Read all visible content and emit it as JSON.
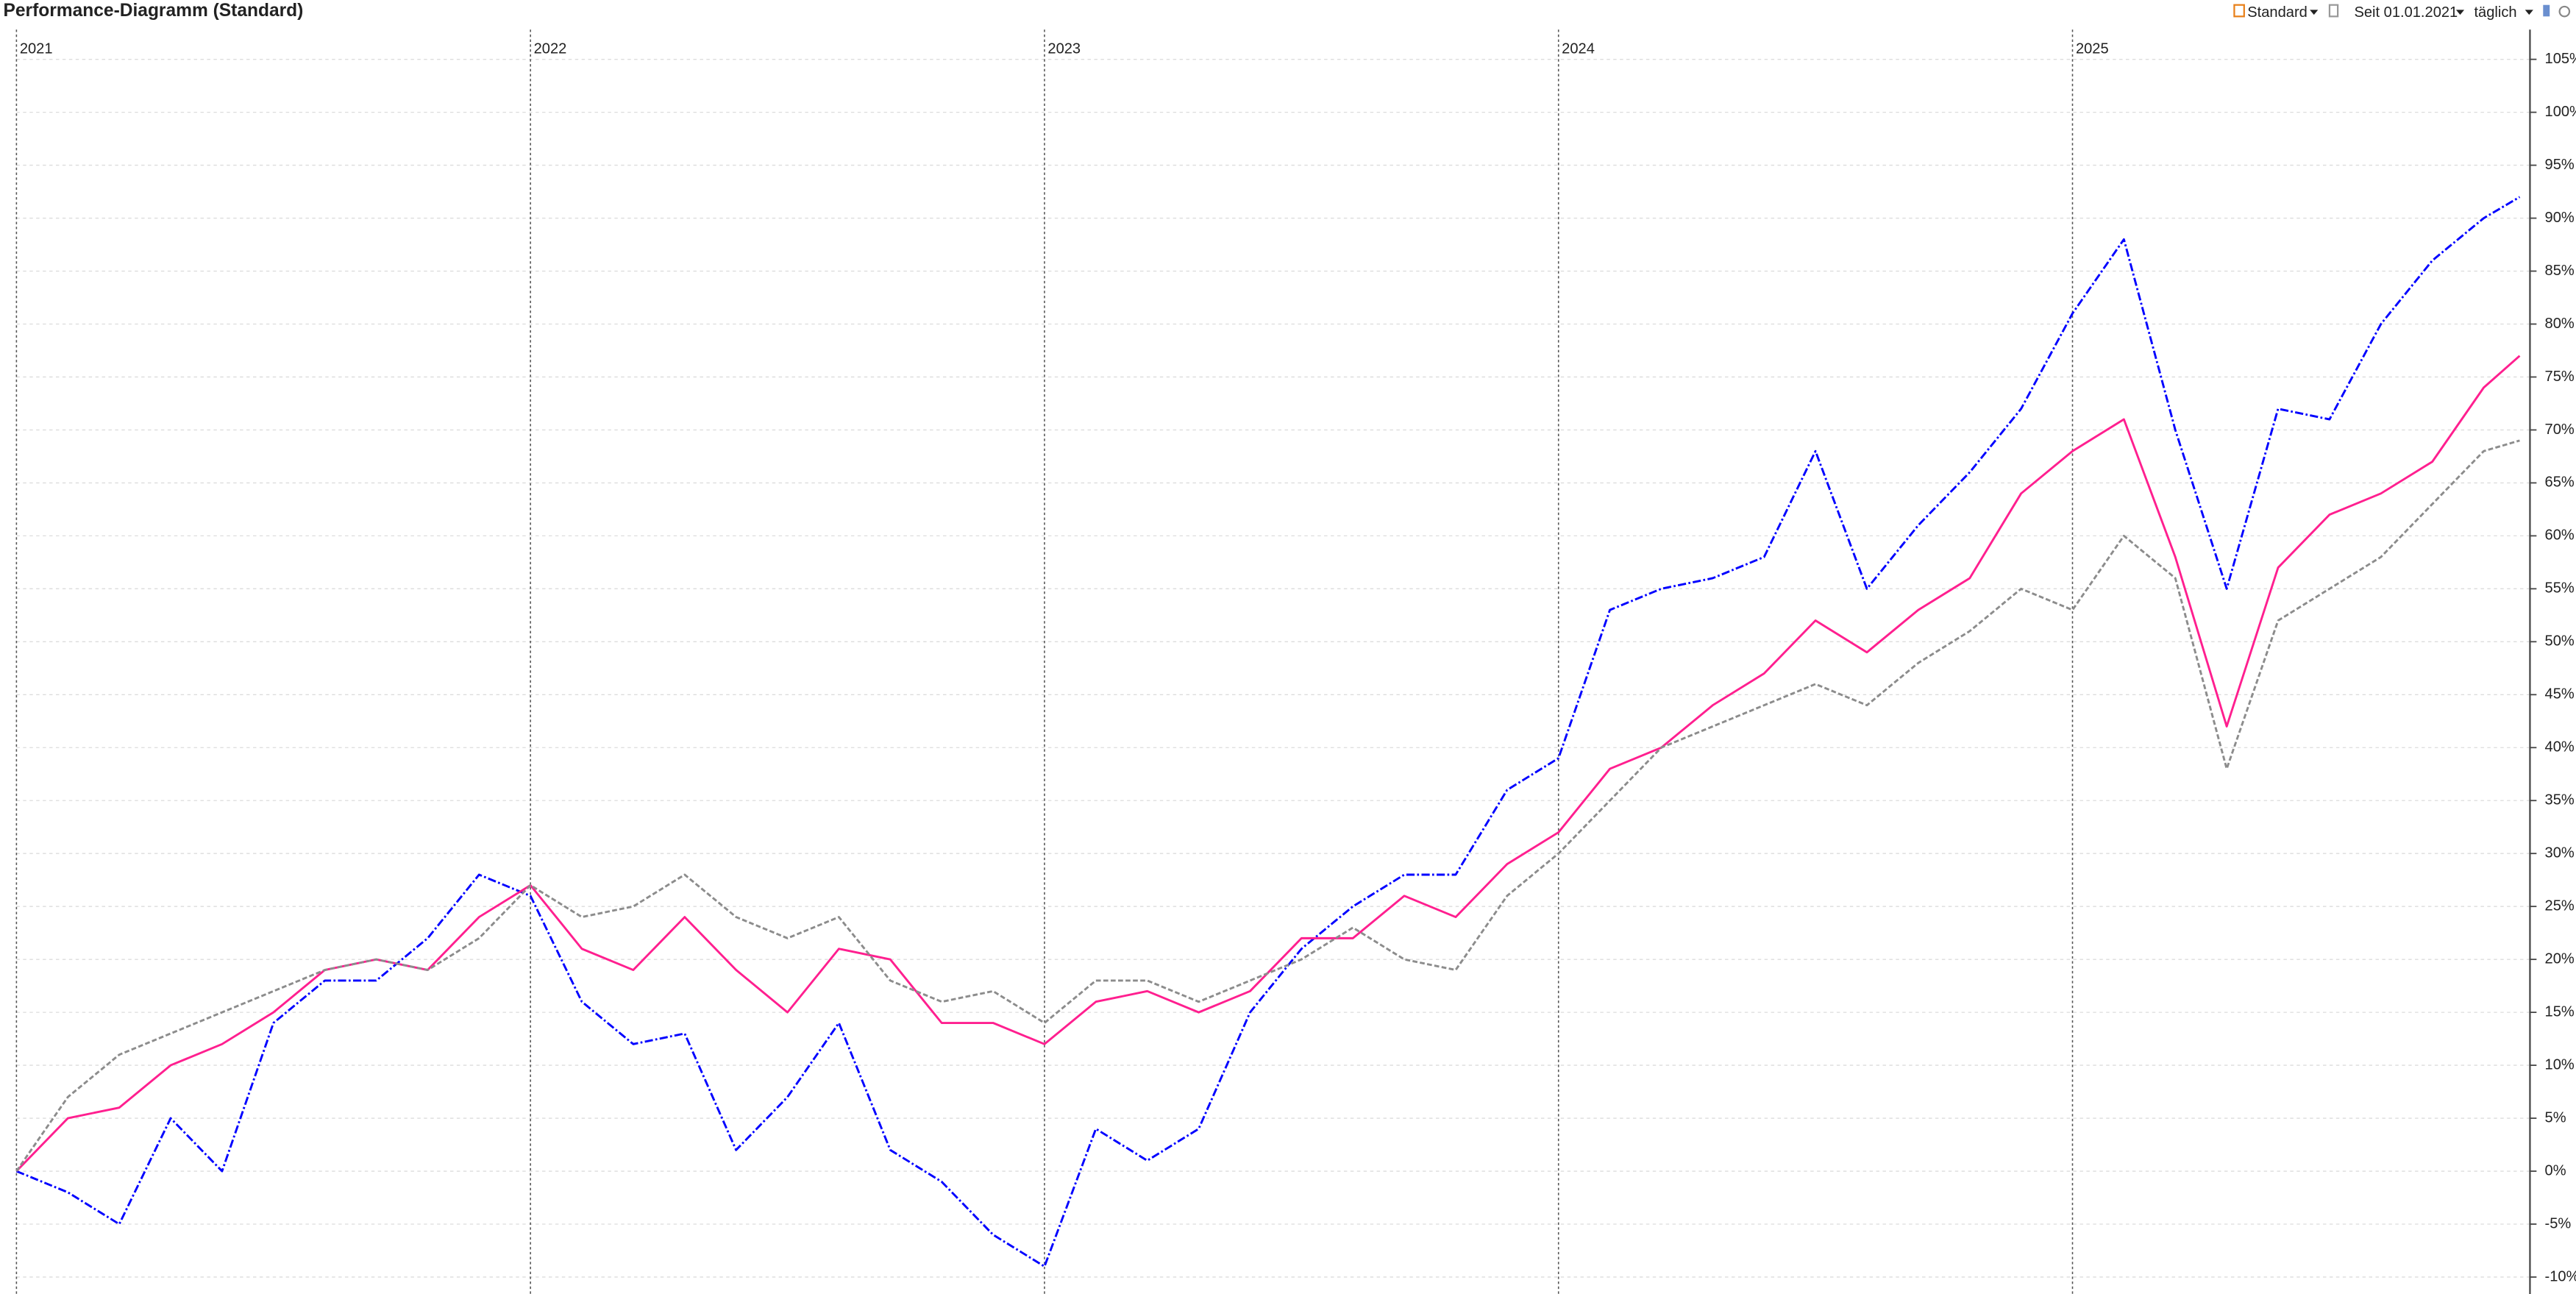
{
  "toolbar": {
    "view": "Standard",
    "range": "Seit 01.01.2021",
    "interval": "täglich"
  },
  "chart_data": {
    "type": "line",
    "title": "Performance-Diagramm (Standard)",
    "x": [
      2021,
      2021.1,
      2021.2,
      2021.3,
      2021.4,
      2021.5,
      2021.6,
      2021.7,
      2021.8,
      2021.9,
      2022,
      2022.1,
      2022.2,
      2022.3,
      2022.4,
      2022.5,
      2022.6,
      2022.7,
      2022.8,
      2022.9,
      2023,
      2023.1,
      2023.2,
      2023.3,
      2023.4,
      2023.5,
      2023.6,
      2023.7,
      2023.8,
      2023.9,
      2024,
      2024.1,
      2024.2,
      2024.3,
      2024.4,
      2024.5,
      2024.6,
      2024.7,
      2024.8,
      2024.9,
      2025,
      2025.1,
      2025.2,
      2025.3,
      2025.4,
      2025.5,
      2025.6,
      2025.7,
      2025.8,
      2025.87
    ],
    "series": [
      {
        "color": "#0000ff",
        "dash": "dashdot",
        "values": [
          0,
          -2,
          -5,
          5,
          0,
          14,
          18,
          18,
          22,
          28,
          26,
          16,
          12,
          13,
          2,
          7,
          14,
          2,
          -1,
          -6,
          -9,
          4,
          1,
          4,
          15,
          21,
          25,
          28,
          28,
          36,
          39,
          53,
          55,
          56,
          58,
          68,
          55,
          61,
          66,
          72,
          81,
          88,
          70,
          55,
          72,
          71,
          80,
          86,
          90,
          92
        ]
      },
      {
        "color": "#ff1f8f",
        "dash": "solid",
        "values": [
          0,
          5,
          6,
          10,
          12,
          15,
          19,
          20,
          19,
          24,
          27,
          21,
          19,
          24,
          19,
          15,
          21,
          20,
          14,
          14,
          12,
          16,
          17,
          15,
          17,
          22,
          22,
          26,
          24,
          29,
          32,
          38,
          40,
          44,
          47,
          52,
          49,
          53,
          56,
          64,
          68,
          71,
          58,
          42,
          57,
          62,
          64,
          67,
          74,
          77
        ]
      },
      {
        "color": "#8c8c8c",
        "dash": "dashed",
        "values": [
          0,
          7,
          11,
          13,
          15,
          17,
          19,
          20,
          19,
          22,
          27,
          24,
          25,
          28,
          24,
          22,
          24,
          18,
          16,
          17,
          14,
          18,
          18,
          16,
          18,
          20,
          23,
          20,
          19,
          26,
          30,
          35,
          40,
          42,
          44,
          46,
          44,
          48,
          51,
          55,
          53,
          60,
          56,
          38,
          52,
          55,
          58,
          63,
          68,
          69
        ]
      }
    ],
    "xlim": [
      2021,
      2025.89
    ],
    "xticks": [
      2021,
      2022,
      2023,
      2024,
      2025
    ],
    "ylim": [
      -11.6,
      107.5
    ],
    "yticks": [
      {
        "value": -10,
        "label": "-10%"
      },
      {
        "value": -5,
        "label": "-5%"
      },
      {
        "value": 0,
        "label": "0%"
      },
      {
        "value": 5,
        "label": "5%"
      },
      {
        "value": 10,
        "label": "10%"
      },
      {
        "value": 15,
        "label": "15%"
      },
      {
        "value": 20,
        "label": "20%"
      },
      {
        "value": 25,
        "label": "25%"
      },
      {
        "value": 30,
        "label": "30%"
      },
      {
        "value": 35,
        "label": "35%"
      },
      {
        "value": 40,
        "label": "40%"
      },
      {
        "value": 45,
        "label": "45%"
      },
      {
        "value": 50,
        "label": "50%"
      },
      {
        "value": 55,
        "label": "55%"
      },
      {
        "value": 60,
        "label": "60%"
      },
      {
        "value": 65,
        "label": "65%"
      },
      {
        "value": 70,
        "label": "70%"
      },
      {
        "value": 75,
        "label": "75%"
      },
      {
        "value": 80,
        "label": "80%"
      },
      {
        "value": 85,
        "label": "85%"
      },
      {
        "value": 90,
        "label": "90%"
      },
      {
        "value": 95,
        "label": "95%"
      },
      {
        "value": 100,
        "label": "100%"
      },
      {
        "value": 105,
        "label": "105%"
      }
    ],
    "grid": true
  }
}
